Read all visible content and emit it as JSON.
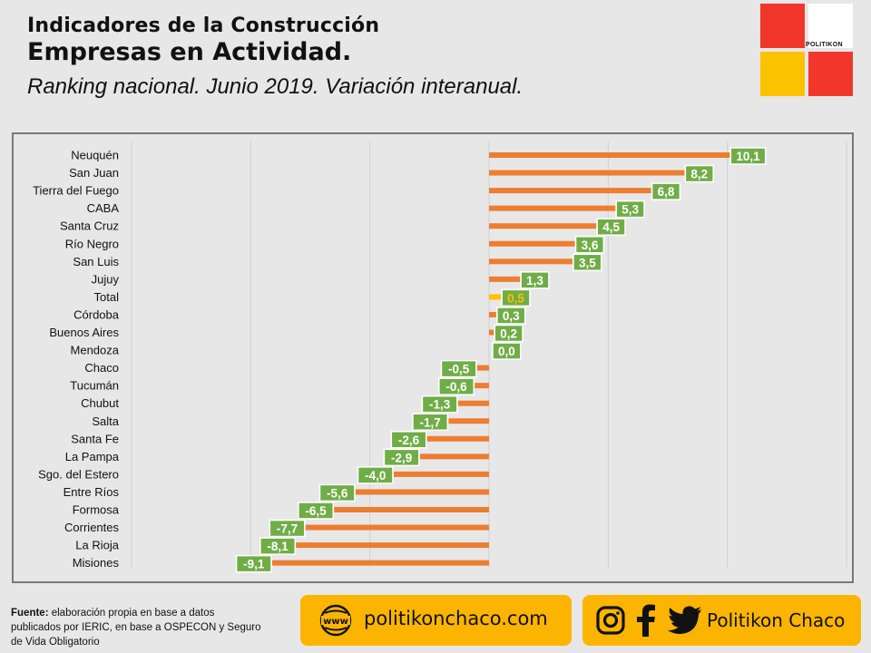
{
  "header": {
    "title_line1": "Indicadores de la Construcción",
    "title_line2": "Empresas en Actividad.",
    "subtitle": "Ranking nacional. Junio 2019. Variación interanual."
  },
  "logo": {
    "brand": "POLITIKON"
  },
  "footer": {
    "source_label": "Fuente:",
    "source_text": " elaboración propia en base a datos publicados por IERIC, en base a OSPECON y Seguro de Vida Obligatorio",
    "website": "politikonchaco.com",
    "social_handle": "Politikon Chaco",
    "icons": [
      "globe-www-icon",
      "instagram-icon",
      "facebook-icon",
      "twitter-icon"
    ]
  },
  "colors": {
    "bar": "#ed7d31",
    "bar_total": "#ffc000",
    "label_bg": "#70ad47",
    "label_text": "#ffffff",
    "label_total_text": "#ffc000",
    "pill": "#fbb500"
  },
  "chart_data": {
    "type": "bar",
    "orientation": "horizontal",
    "categories": [
      "Neuquén",
      "San Juan",
      "Tierra del Fuego",
      "CABA",
      "Santa Cruz",
      "Río Negro",
      "San Luis",
      "Jujuy",
      "Total",
      "Córdoba",
      "Buenos Aires",
      "Mendoza",
      "Chaco",
      "Tucumán",
      "Chubut",
      "Salta",
      "Santa Fe",
      "La Pampa",
      "Sgo. del Estero",
      "Entre Ríos",
      "Formosa",
      "Corrientes",
      "La Rioja",
      "Misiones"
    ],
    "values": [
      10.1,
      8.2,
      6.8,
      5.3,
      4.5,
      3.6,
      3.5,
      1.3,
      0.5,
      0.3,
      0.2,
      0.0,
      -0.5,
      -0.6,
      -1.3,
      -1.7,
      -2.6,
      -2.9,
      -4.0,
      -5.6,
      -6.5,
      -7.7,
      -8.1,
      -9.1
    ],
    "labels": [
      "10,1",
      "8,2",
      "6,8",
      "5,3",
      "4,5",
      "3,6",
      "3,5",
      "1,3",
      "0,5",
      "0,3",
      "0,2",
      "0,0",
      "-0,5",
      "-0,6",
      "-1,3",
      "-1,7",
      "-2,6",
      "-2,9",
      "-4,0",
      "-5,6",
      "-6,5",
      "-7,7",
      "-8,1",
      "-9,1"
    ],
    "highlight": "Total",
    "xlim": [
      -15,
      15
    ],
    "grid": true
  }
}
